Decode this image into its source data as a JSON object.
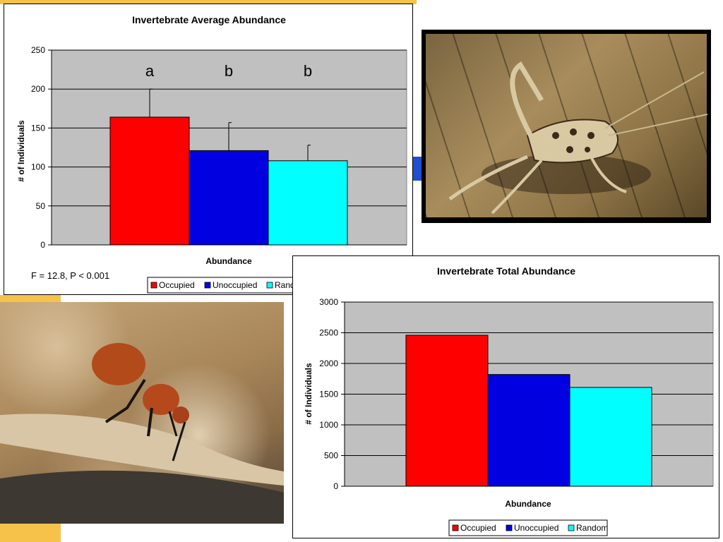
{
  "chart_data": [
    {
      "type": "bar",
      "title": "Invertebrate Average Abundance",
      "xlabel": "Abundance",
      "ylabel": "# of Individuals",
      "ylim": [
        0,
        250
      ],
      "yticks": [
        "0",
        "50",
        "100",
        "150",
        "200",
        "250"
      ],
      "grid": true,
      "legend": "bottom",
      "series": [
        {
          "name": "Occupied",
          "value": 164,
          "error": 36,
          "color": "#ff0000",
          "letter": "a"
        },
        {
          "name": "Unoccupied",
          "value": 121,
          "error": 36,
          "color": "#0000e0",
          "letter": "b"
        },
        {
          "name": "Random",
          "value": 108,
          "error": 20,
          "color": "#00ffff",
          "letter": "b"
        }
      ],
      "annotation": "F = 12.8, P < 0.001"
    },
    {
      "type": "bar",
      "title": "Invertebrate Total Abundance",
      "xlabel": "Abundance",
      "ylabel": "# of Individuals",
      "ylim": [
        0,
        3000
      ],
      "yticks": [
        "0",
        "500",
        "1000",
        "1500",
        "2000",
        "2500",
        "3000"
      ],
      "grid": true,
      "legend": "bottom",
      "series": [
        {
          "name": "Occupied",
          "value": 2460,
          "color": "#ff0000"
        },
        {
          "name": "Unoccupied",
          "value": 1820,
          "color": "#0000e0"
        },
        {
          "name": "Random",
          "value": 1610,
          "color": "#00ffff"
        }
      ]
    }
  ],
  "colors": {
    "plot_background": "#c0c0c0",
    "accent_orange": "#f7c24a",
    "accent_blue": "#1f4fd0"
  }
}
